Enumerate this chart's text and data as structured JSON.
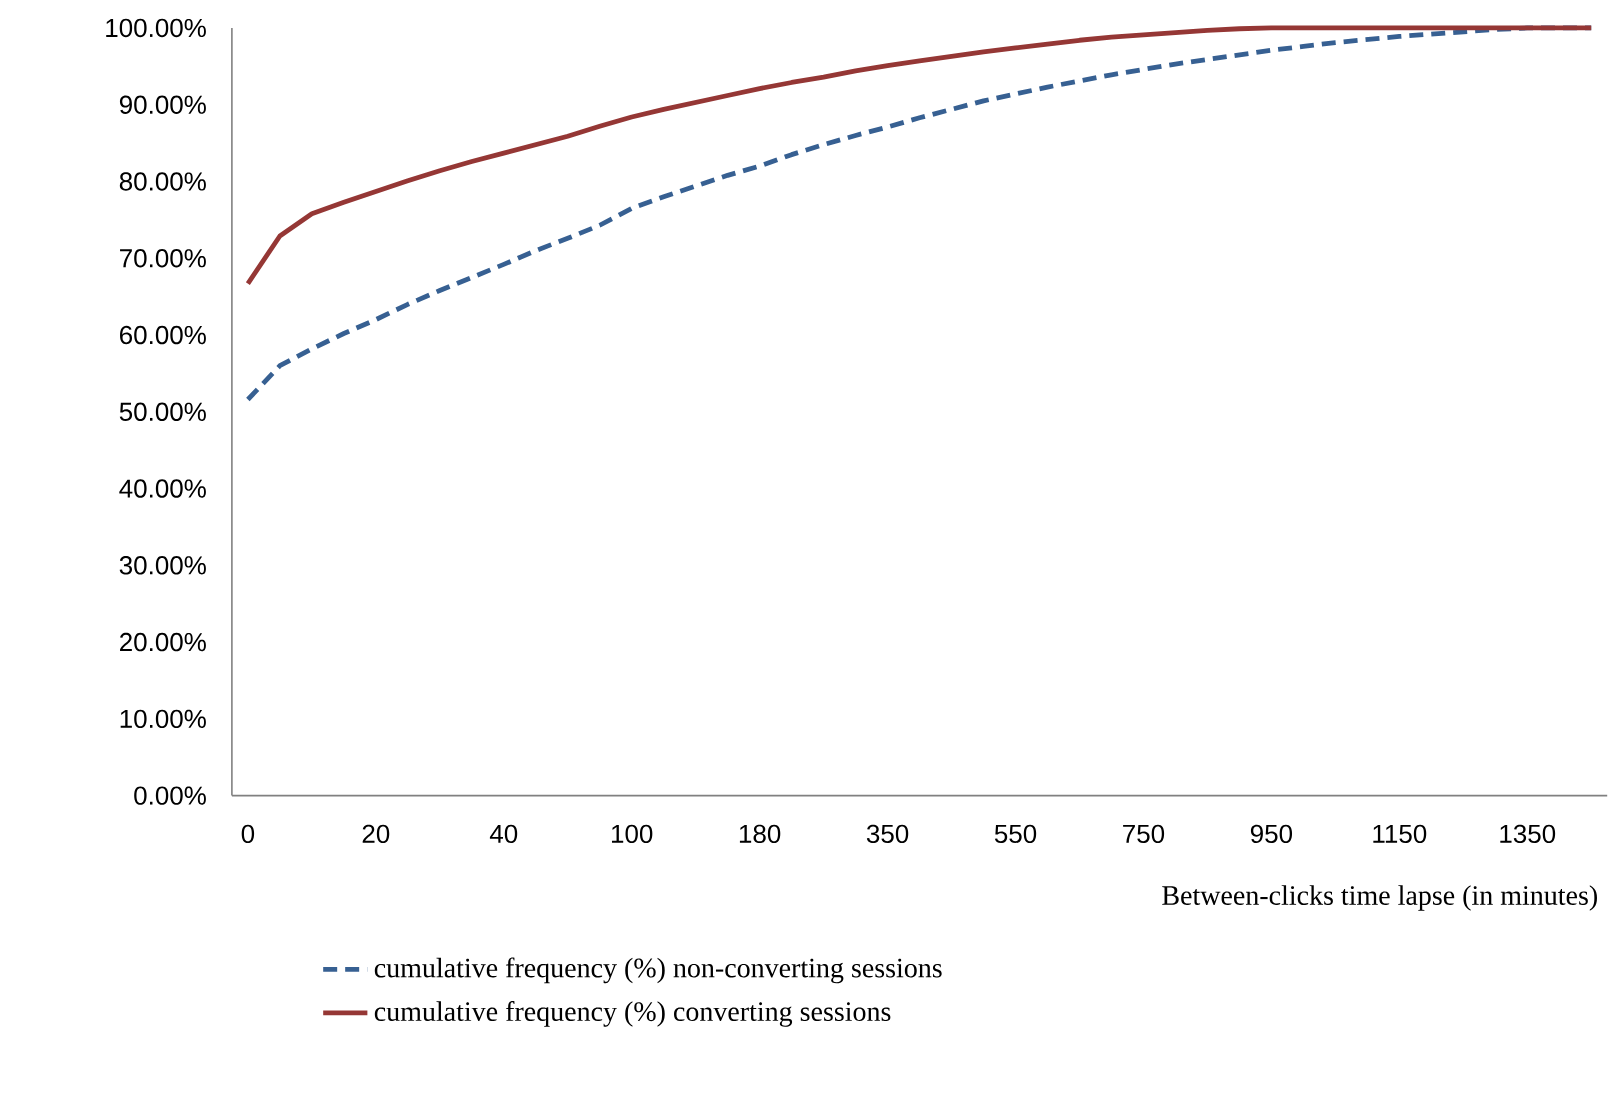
{
  "chart_data": {
    "type": "line",
    "xlabel": "Between-clicks time lapse (in minutes)",
    "categories": [
      "0",
      null,
      null,
      null,
      "20",
      null,
      null,
      null,
      "40",
      null,
      null,
      null,
      "100",
      null,
      null,
      null,
      "180",
      null,
      null,
      null,
      "350",
      null,
      null,
      null,
      "550",
      null,
      null,
      null,
      "750",
      null,
      null,
      null,
      "950",
      null,
      null,
      null,
      "1150",
      null,
      null,
      null,
      "1350",
      null,
      null
    ],
    "ylim": [
      0,
      100
    ],
    "yticks": [
      {
        "value": 0,
        "label": "0.00%"
      },
      {
        "value": 10,
        "label": "10.00%"
      },
      {
        "value": 20,
        "label": "20.00%"
      },
      {
        "value": 30,
        "label": "30.00%"
      },
      {
        "value": 40,
        "label": "40.00%"
      },
      {
        "value": 50,
        "label": "50.00%"
      },
      {
        "value": 60,
        "label": "60.00%"
      },
      {
        "value": 70,
        "label": "70.00%"
      },
      {
        "value": 80,
        "label": "80.00%"
      },
      {
        "value": 90,
        "label": "90.00%"
      },
      {
        "value": 100,
        "label": "100.00%"
      }
    ],
    "grid": false,
    "legend": "bottom",
    "marker": "none",
    "series": [
      {
        "name": "cumulative frequency (%) non-converting sessions",
        "color": "#376092",
        "line_style": "dashed",
        "values": [
          51.6,
          56,
          58.2,
          60.2,
          62,
          64,
          65.8,
          67.5,
          69.2,
          71,
          72.6,
          74.3,
          76.5,
          78,
          79.4,
          80.8,
          82,
          83.5,
          84.8,
          86,
          87.1,
          88.3,
          89.4,
          90.5,
          91.4,
          92.3,
          93.1,
          93.9,
          94.6,
          95.3,
          95.9,
          96.5,
          97.1,
          97.6,
          98.1,
          98.5,
          98.9,
          99.2,
          99.5,
          99.8,
          100,
          100,
          100
        ]
      },
      {
        "name": "cumulative frequency (%) converting sessions",
        "color": "#953735",
        "line_style": "solid",
        "values": [
          66.7,
          72.9,
          75.8,
          77.3,
          78.7,
          80.1,
          81.4,
          82.6,
          83.7,
          84.8,
          85.9,
          87.2,
          88.4,
          89.4,
          90.3,
          91.2,
          92.1,
          92.9,
          93.6,
          94.4,
          95.1,
          95.7,
          96.3,
          96.9,
          97.4,
          97.9,
          98.4,
          98.8,
          99.1,
          99.4,
          99.7,
          99.9,
          100,
          100,
          100,
          100,
          100,
          100,
          100,
          100,
          100,
          100,
          100
        ]
      }
    ]
  }
}
